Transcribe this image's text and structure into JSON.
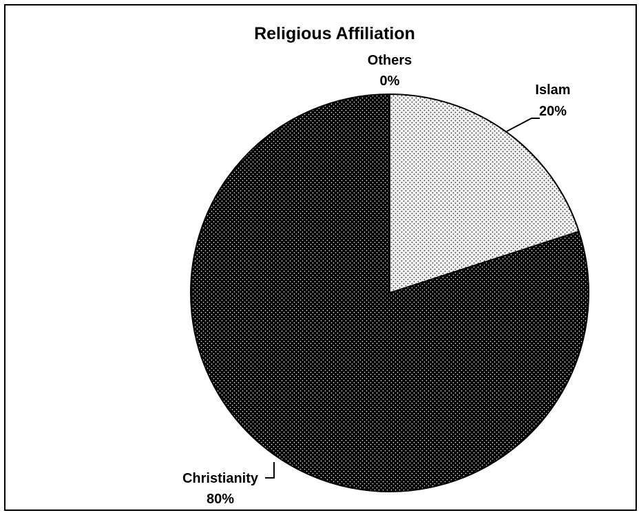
{
  "chart_data": {
    "type": "pie",
    "title": "Religious Affiliation",
    "slices": [
      {
        "label": "Islam",
        "value": 20,
        "value_label": "20%",
        "fill": "#f2f2f2",
        "dot": "#2a2a2a"
      },
      {
        "label": "Christianity",
        "value": 80,
        "value_label": "80%",
        "fill": "#000000",
        "dot": "#ffffff"
      },
      {
        "label": "Others",
        "value": 0,
        "value_label": "0%",
        "fill": "#ffffff",
        "dot": "#000000"
      }
    ],
    "legend": "none",
    "labels": "outside with leader lines"
  }
}
